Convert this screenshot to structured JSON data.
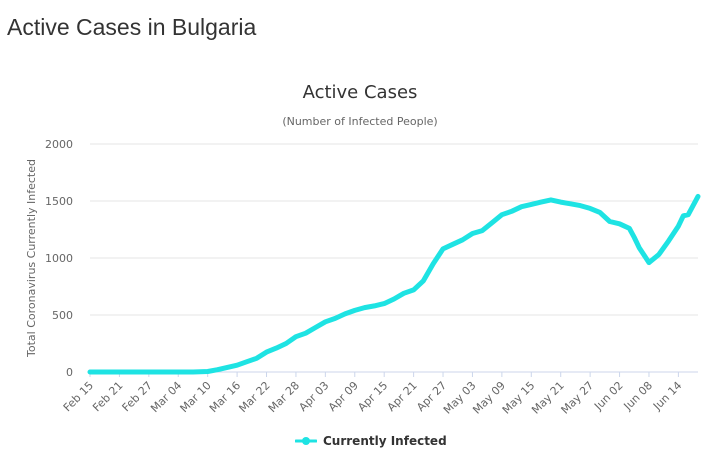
{
  "page": {
    "heading": "Active Cases in Bulgaria"
  },
  "chart_data": {
    "type": "line",
    "title": "Active Cases",
    "subtitle": "(Number of Infected People)",
    "xlabel": "",
    "ylabel": "Total Coronavirus Currently Infected",
    "ylim": [
      0,
      2000
    ],
    "yticks": [
      0,
      500,
      1000,
      1500,
      2000
    ],
    "xticks": [
      "Feb 15",
      "Feb 21",
      "Feb 27",
      "Mar 04",
      "Mar 10",
      "Mar 16",
      "Mar 22",
      "Mar 28",
      "Apr 03",
      "Apr 09",
      "Apr 15",
      "Apr 21",
      "Apr 27",
      "May 03",
      "May 09",
      "May 15",
      "May 21",
      "May 27",
      "Jun 02",
      "Jun 08",
      "Jun 14"
    ],
    "grid": true,
    "legend_position": "bottom-center",
    "series": [
      {
        "name": "Currently Infected",
        "color": "#1ee3e3",
        "x": [
          "Feb 15",
          "Feb 18",
          "Feb 21",
          "Feb 24",
          "Feb 27",
          "Mar 01",
          "Mar 04",
          "Mar 07",
          "Mar 10",
          "Mar 12",
          "Mar 14",
          "Mar 16",
          "Mar 18",
          "Mar 20",
          "Mar 22",
          "Mar 24",
          "Mar 26",
          "Mar 28",
          "Mar 30",
          "Apr 01",
          "Apr 03",
          "Apr 05",
          "Apr 07",
          "Apr 09",
          "Apr 11",
          "Apr 13",
          "Apr 15",
          "Apr 17",
          "Apr 19",
          "Apr 21",
          "Apr 23",
          "Apr 25",
          "Apr 27",
          "Apr 29",
          "May 01",
          "May 03",
          "May 05",
          "May 07",
          "May 09",
          "May 11",
          "May 13",
          "May 15",
          "May 17",
          "May 19",
          "May 21",
          "May 23",
          "May 25",
          "May 27",
          "May 29",
          "May 31",
          "Jun 02",
          "Jun 04",
          "Jun 05",
          "Jun 06",
          "Jun 08",
          "Jun 10",
          "Jun 12",
          "Jun 14",
          "Jun 15",
          "Jun 16",
          "Jun 17",
          "Jun 18"
        ],
        "values": [
          0,
          0,
          0,
          0,
          0,
          0,
          0,
          0,
          4,
          20,
          40,
          60,
          90,
          120,
          175,
          210,
          250,
          310,
          340,
          390,
          440,
          470,
          510,
          540,
          565,
          580,
          600,
          640,
          690,
          720,
          800,
          950,
          1080,
          1120,
          1160,
          1215,
          1240,
          1310,
          1380,
          1410,
          1450,
          1470,
          1490,
          1510,
          1490,
          1475,
          1460,
          1435,
          1400,
          1320,
          1300,
          1260,
          1180,
          1090,
          960,
          1030,
          1150,
          1280,
          1370,
          1380,
          1460,
          1540
        ]
      }
    ]
  }
}
